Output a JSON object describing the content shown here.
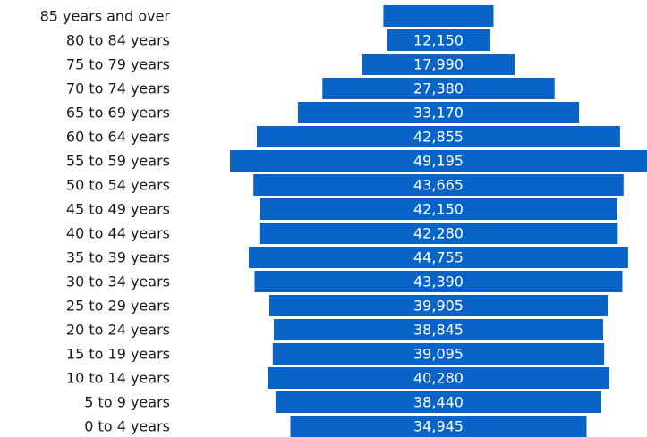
{
  "colors": {
    "bar": "#0a64c8",
    "label": "#1a1a1a",
    "value_text": "#ffffff"
  },
  "chart_data": {
    "type": "bar",
    "orientation": "horizontal",
    "alignment": "centered",
    "categories": [
      "85 years and over",
      "80 to 84 years",
      "75 to 79 years",
      "70 to 74 years",
      "65 to 69 years",
      "60 to 64 years",
      "55 to 59 years",
      "50 to 54 years",
      "45 to 49 years",
      "40 to 44 years",
      "35 to 39 years",
      "30 to 34 years",
      "25 to 29 years",
      "20 to 24 years",
      "15 to 19 years",
      "10 to 14 years",
      "5 to 9 years",
      "0 to 4 years"
    ],
    "values": [
      13000,
      12150,
      17990,
      27380,
      33170,
      42855,
      49195,
      43665,
      42150,
      42280,
      44755,
      43390,
      39905,
      38845,
      39095,
      40280,
      38440,
      34945
    ],
    "value_labels": [
      "",
      "12,150",
      "17,990",
      "27,380",
      "33,170",
      "42,855",
      "49,195",
      "43,665",
      "42,150",
      "42,280",
      "44,755",
      "43,390",
      "39,905",
      "38,845",
      "39,095",
      "40,280",
      "38,440",
      "34,945"
    ],
    "grid": false,
    "legend": "none"
  }
}
